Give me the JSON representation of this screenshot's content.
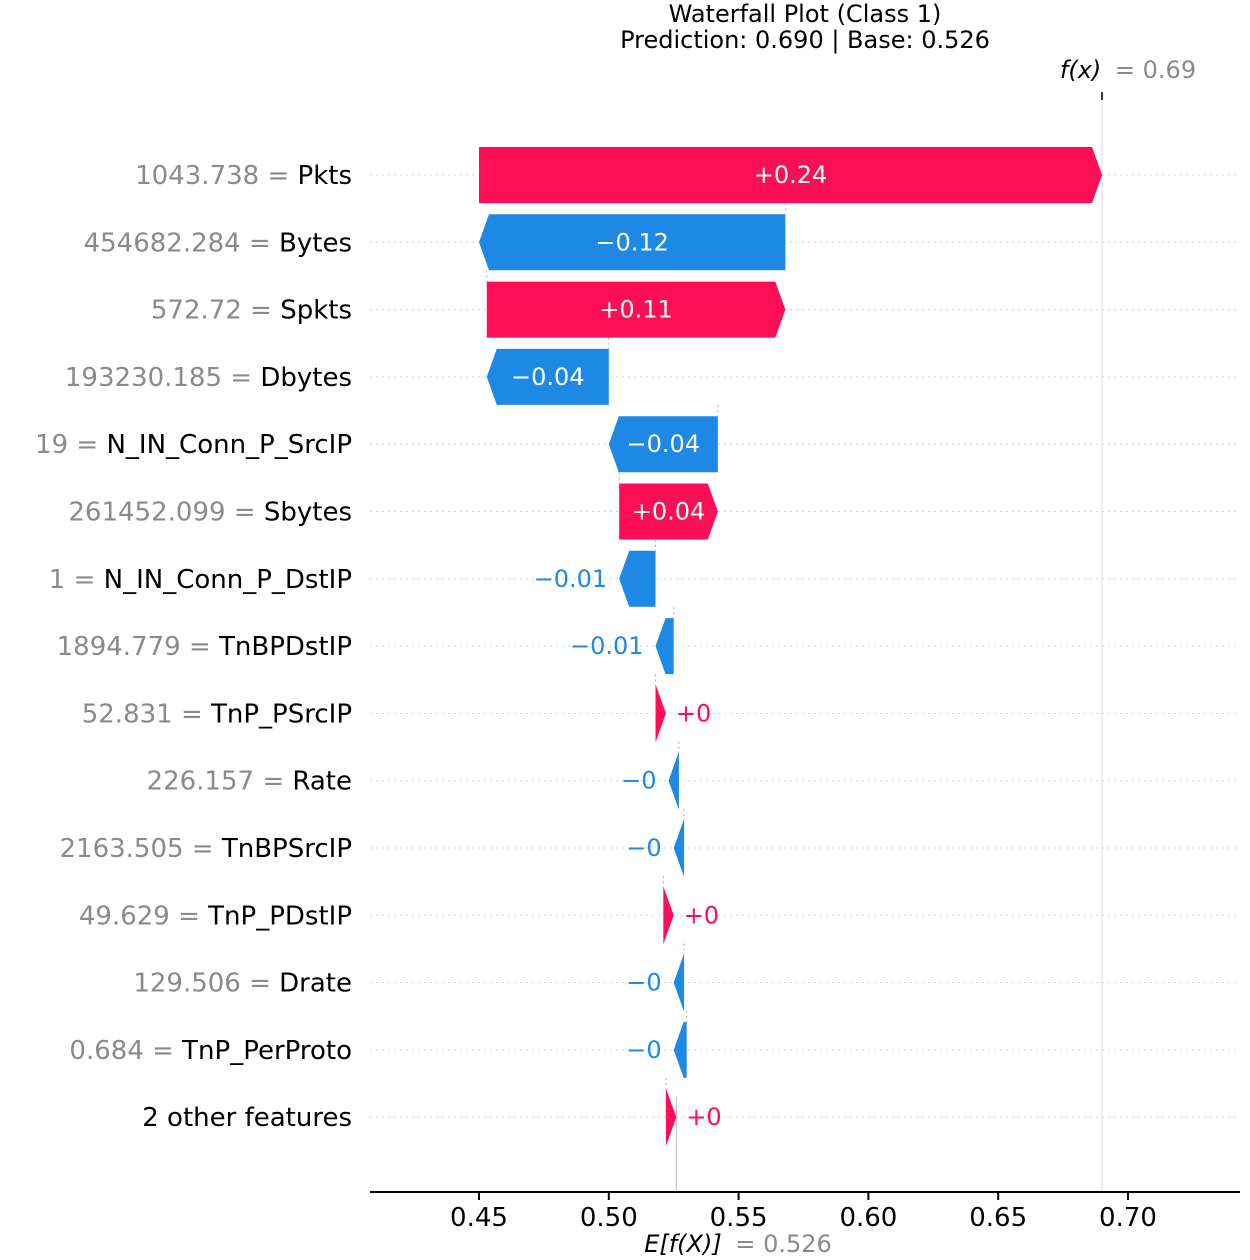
{
  "chart_data": {
    "type": "waterfall",
    "title": "Waterfall Plot (Class 1)",
    "subtitle": "Prediction: 0.690 | Base: 0.526",
    "xlim": [
      0.415,
      0.73
    ],
    "x_ticks": [
      "0.45",
      "0.50",
      "0.55",
      "0.60",
      "0.65",
      "0.70"
    ],
    "x_tick_values": [
      0.45,
      0.5,
      0.55,
      0.6,
      0.65,
      0.7
    ],
    "base_value": 0.526,
    "prediction": 0.69,
    "fx_name": "f(x)",
    "fx_value_label": "= 0.69",
    "ef_name": "E[f(X)]",
    "ef_value_label": "= 0.526",
    "colors": {
      "positive": "#ff0d57",
      "negative": "#1e88e5",
      "value_gray": "#8a8a8a"
    },
    "features": [
      {
        "value": "1043.738",
        "name": "Pkts",
        "contribution": 0.24,
        "label": "+0.24",
        "from": 0.45,
        "to": 0.69
      },
      {
        "value": "454682.284",
        "name": "Bytes",
        "contribution": -0.12,
        "label": "−0.12",
        "from": 0.568,
        "to": 0.45
      },
      {
        "value": "572.72",
        "name": "Spkts",
        "contribution": 0.11,
        "label": "+0.11",
        "from": 0.453,
        "to": 0.568
      },
      {
        "value": "193230.185",
        "name": "Dbytes",
        "contribution": -0.04,
        "label": "−0.04",
        "from": 0.5,
        "to": 0.453
      },
      {
        "value": "19",
        "name": "N_IN_Conn_P_SrcIP",
        "contribution": -0.04,
        "label": "−0.04",
        "from": 0.542,
        "to": 0.5
      },
      {
        "value": "261452.099",
        "name": "Sbytes",
        "contribution": 0.04,
        "label": "+0.04",
        "from": 0.504,
        "to": 0.542
      },
      {
        "value": "1",
        "name": "N_IN_Conn_P_DstIP",
        "contribution": -0.01,
        "label": "−0.01",
        "from": 0.518,
        "to": 0.504
      },
      {
        "value": "1894.779",
        "name": "TnBPDstIP",
        "contribution": -0.01,
        "label": "−0.01",
        "from": 0.525,
        "to": 0.518
      },
      {
        "value": "52.831",
        "name": "TnP_PSrcIP",
        "contribution": 0,
        "label": "+0",
        "from": 0.518,
        "to": 0.522
      },
      {
        "value": "226.157",
        "name": "Rate",
        "contribution": 0,
        "label": "−0",
        "from": 0.527,
        "to": 0.523
      },
      {
        "value": "2163.505",
        "name": "TnBPSrcIP",
        "contribution": 0,
        "label": "−0",
        "from": 0.529,
        "to": 0.525
      },
      {
        "value": "49.629",
        "name": "TnP_PDstIP",
        "contribution": 0,
        "label": "+0",
        "from": 0.521,
        "to": 0.525
      },
      {
        "value": "129.506",
        "name": "Drate",
        "contribution": 0,
        "label": "−0",
        "from": 0.529,
        "to": 0.525
      },
      {
        "value": "0.684",
        "name": "TnP_PerProto",
        "contribution": 0,
        "label": "−0",
        "from": 0.53,
        "to": 0.525
      },
      {
        "value": "",
        "name": "2 other features",
        "contribution": 0,
        "label": "+0",
        "from": 0.522,
        "to": 0.526
      }
    ]
  }
}
